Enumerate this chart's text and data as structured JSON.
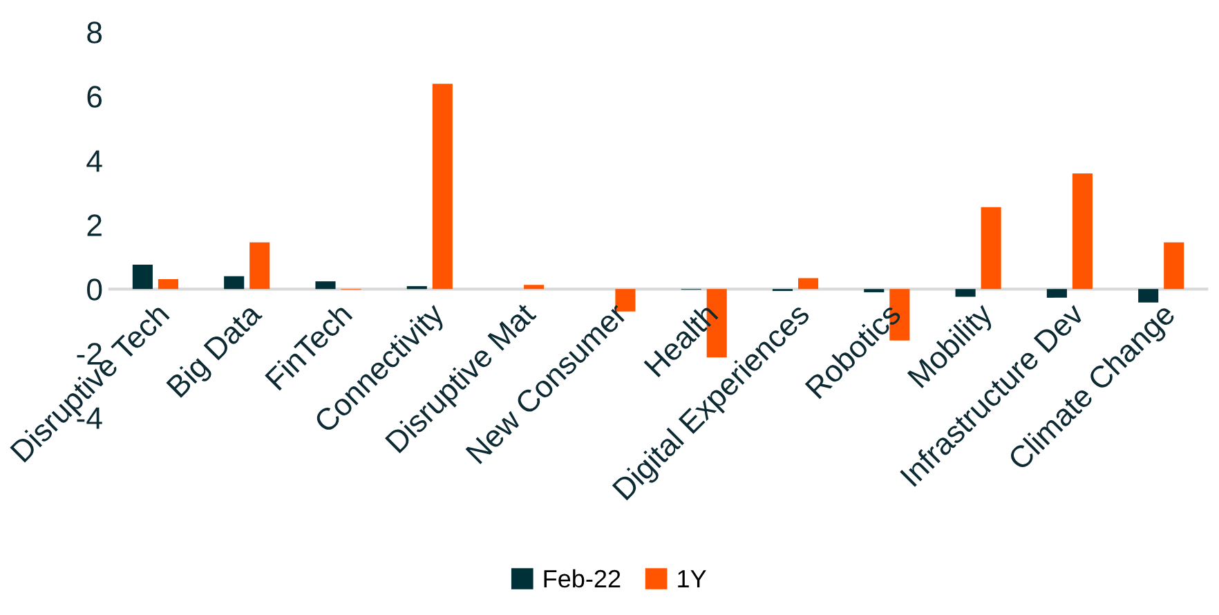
{
  "chart_data": {
    "type": "bar",
    "categories": [
      "Disruptive Tech",
      "Big Data",
      "FinTech",
      "Connectivity",
      "Disruptive Mat",
      "New Consumer",
      "Health",
      "Digital Experiences",
      "Robotics",
      "Mobility",
      "Infrastructure Dev",
      "Climate Change"
    ],
    "series": [
      {
        "name": "Feb-22",
        "color": "#003038",
        "values": [
          0.76,
          0.4,
          0.24,
          0.09,
          0,
          0,
          -0.02,
          -0.06,
          -0.1,
          -0.24,
          -0.27,
          -0.42
        ]
      },
      {
        "name": "1Y",
        "color": "#ff5500",
        "values": [
          0.31,
          1.45,
          -0.02,
          6.39,
          0.13,
          -0.7,
          -2.13,
          0.34,
          -1.6,
          2.55,
          3.6,
          1.45
        ]
      }
    ],
    "ylim": [
      -4,
      8
    ],
    "yticks": [
      -4,
      -2,
      0,
      2,
      4,
      6,
      8
    ],
    "grid": false,
    "legend": "bottom"
  }
}
